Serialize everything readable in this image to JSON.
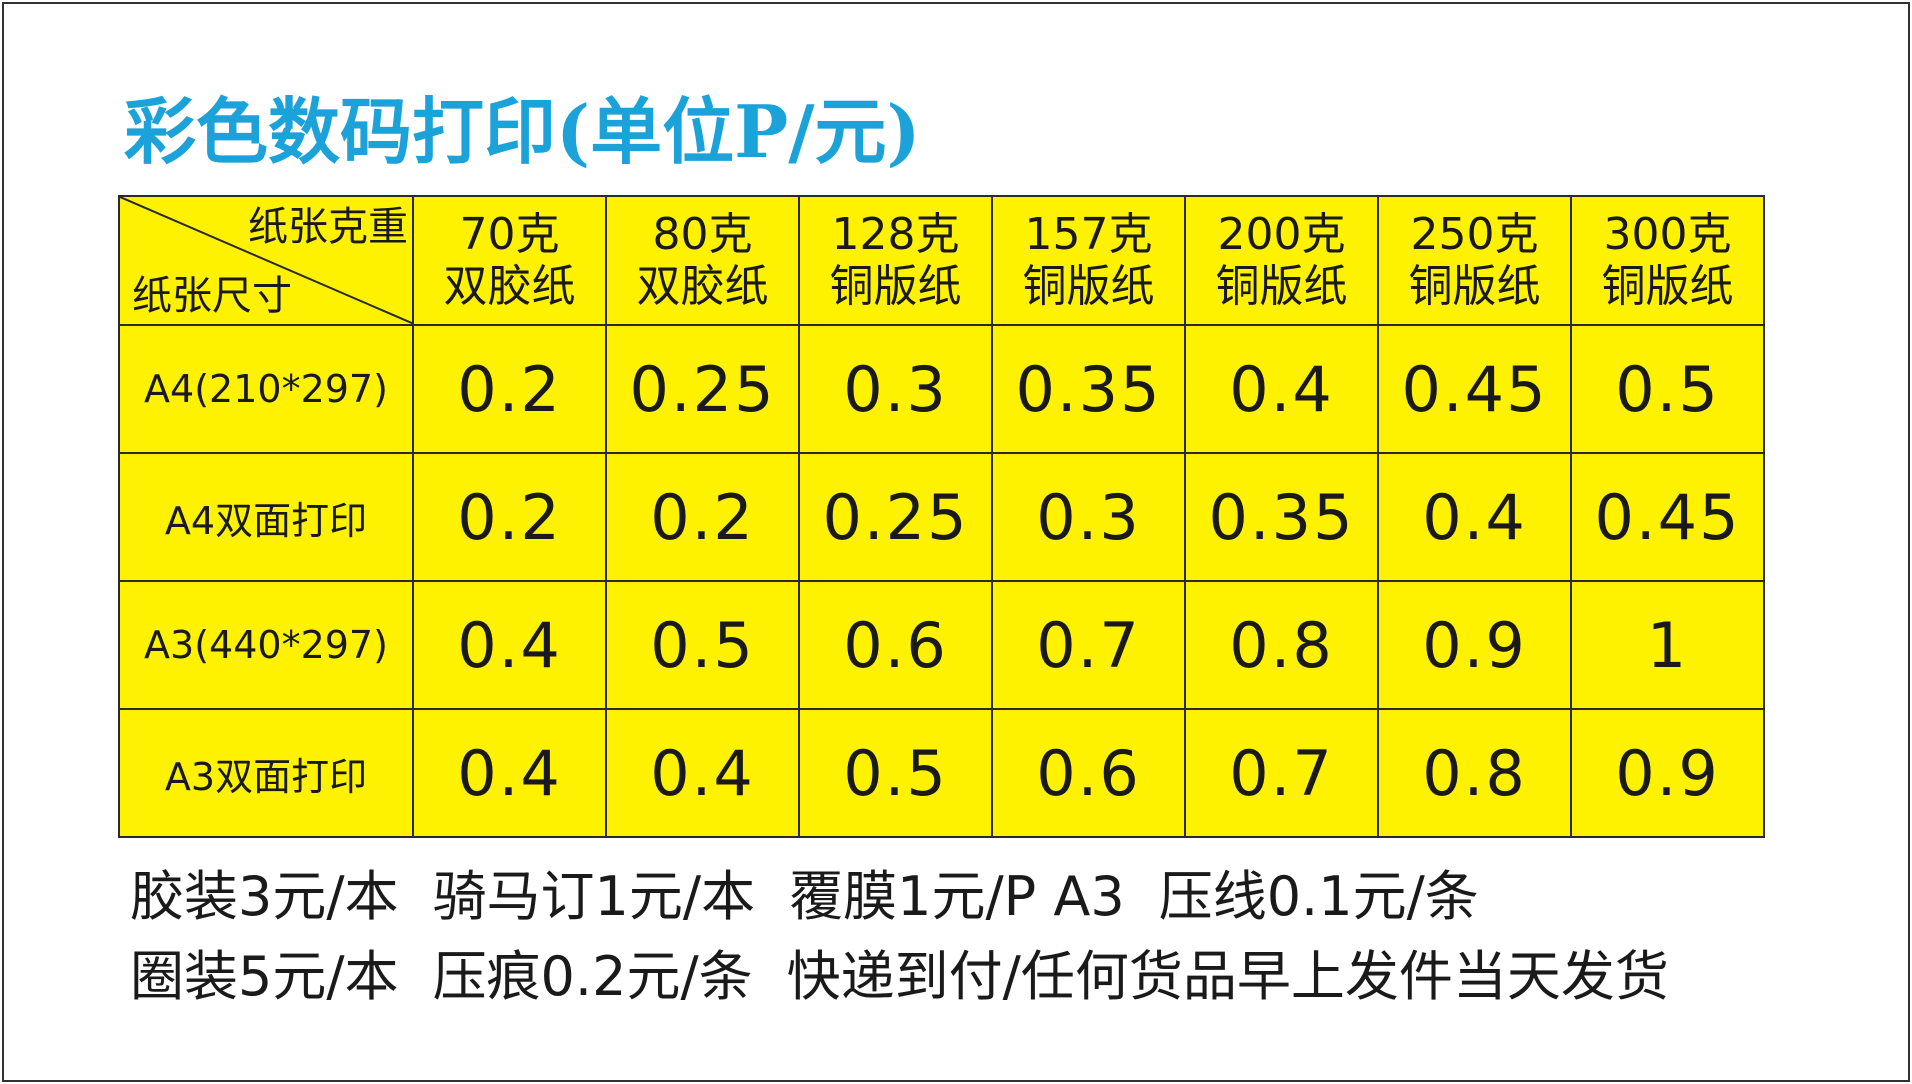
{
  "title": "彩色数码打印(单位P/元)",
  "colors": {
    "title": "#1ba3d9",
    "table_bg": "#fff200",
    "border": "#2a2a2a"
  },
  "table": {
    "corner": {
      "weight_label": "纸张克重",
      "size_label": "纸张尺寸"
    },
    "columns": [
      {
        "weight": "70克",
        "paper": "双胶纸"
      },
      {
        "weight": "80克",
        "paper": "双胶纸"
      },
      {
        "weight": "128克",
        "paper": "铜版纸"
      },
      {
        "weight": "157克",
        "paper": "铜版纸"
      },
      {
        "weight": "200克",
        "paper": "铜版纸"
      },
      {
        "weight": "250克",
        "paper": "铜版纸"
      },
      {
        "weight": "300克",
        "paper": "铜版纸"
      }
    ],
    "rows": [
      {
        "label": "A4(210*297)",
        "values": [
          "0.2",
          "0.25",
          "0.3",
          "0.35",
          "0.4",
          "0.45",
          "0.5"
        ]
      },
      {
        "label": "A4双面打印",
        "values": [
          "0.2",
          "0.2",
          "0.25",
          "0.3",
          "0.35",
          "0.4",
          "0.45"
        ]
      },
      {
        "label": "A3(440*297)",
        "values": [
          "0.4",
          "0.5",
          "0.6",
          "0.7",
          "0.8",
          "0.9",
          "1"
        ]
      },
      {
        "label": "A3双面打印",
        "values": [
          "0.4",
          "0.4",
          "0.5",
          "0.6",
          "0.7",
          "0.8",
          "0.9"
        ]
      }
    ]
  },
  "footer": {
    "line1": [
      "胶装3元/本",
      "骑马订1元/本",
      "覆膜1元/P A3",
      "压线0.1元/条"
    ],
    "line2": [
      "圈装5元/本",
      "压痕0.2元/条",
      "快递到付/任何货品早上发件当天发货"
    ]
  }
}
